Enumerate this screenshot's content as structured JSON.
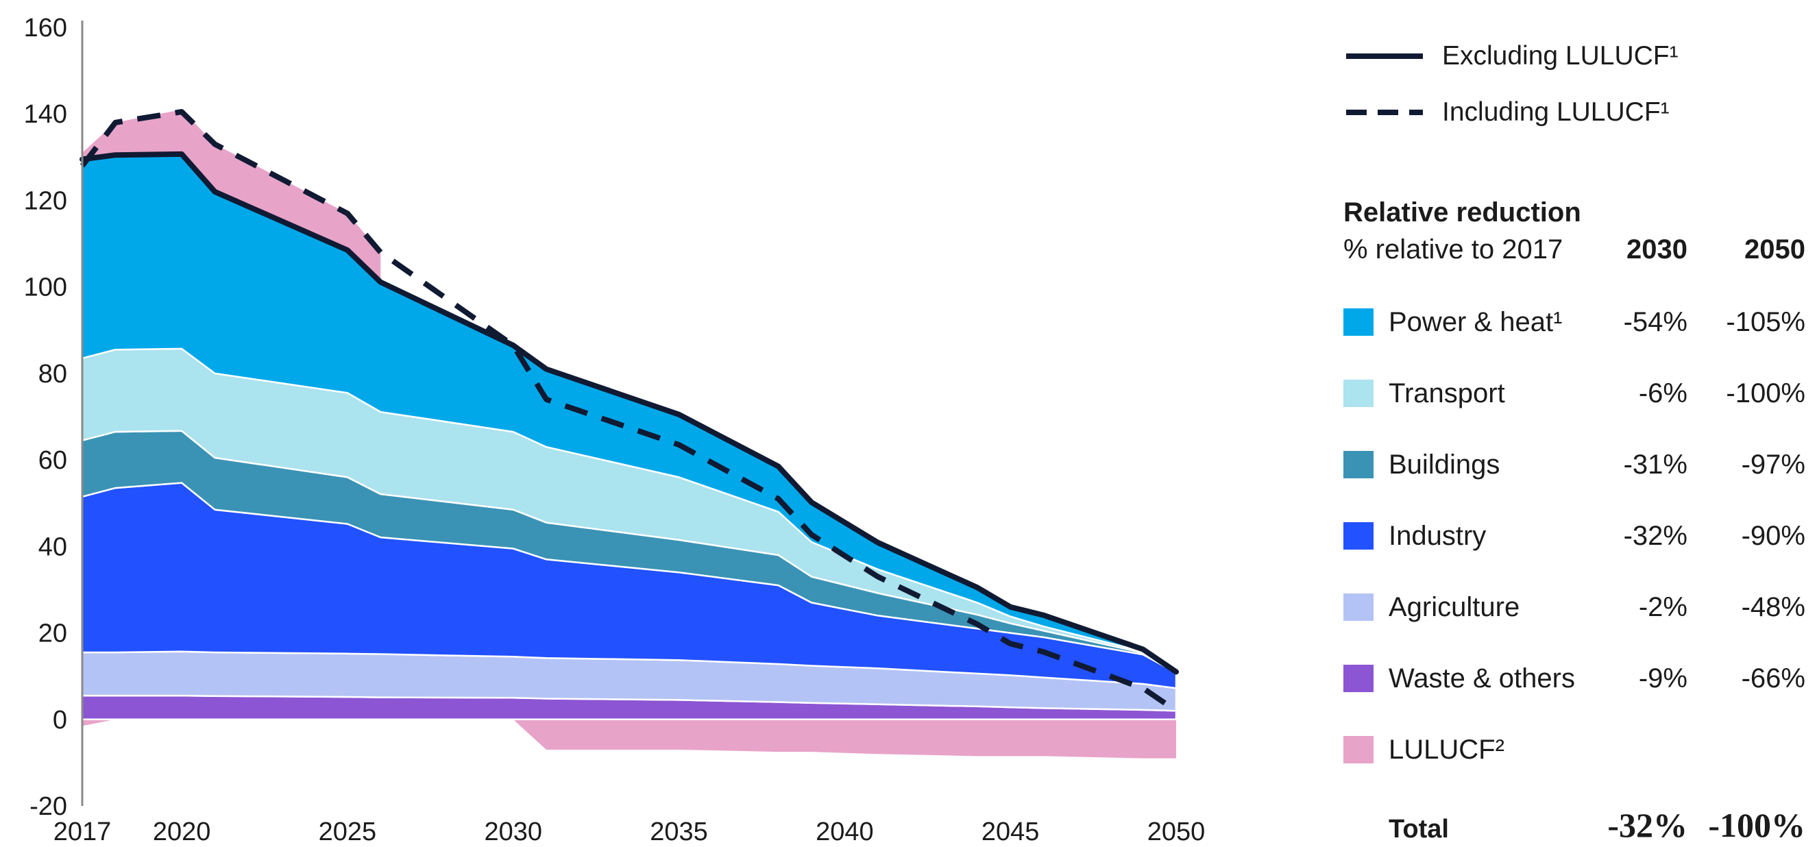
{
  "chart_data": {
    "type": "area",
    "stacked": true,
    "x": [
      2017,
      2018,
      2020,
      2021,
      2025,
      2026,
      2030,
      2031,
      2035,
      2038,
      2039,
      2041,
      2044,
      2045,
      2046,
      2049,
      2050
    ],
    "xticks": [
      2017,
      2020,
      2025,
      2030,
      2035,
      2040,
      2045,
      2050
    ],
    "yticks": [
      -20,
      0,
      20,
      40,
      60,
      80,
      100,
      120,
      140,
      160
    ],
    "ylim": [
      -20,
      160
    ],
    "xlim": [
      2017,
      2050
    ],
    "grid": false,
    "series": [
      {
        "name": "Waste & others",
        "color": "#8c55d3",
        "values": [
          5.5,
          5.5,
          5.5,
          5.4,
          5.2,
          5.1,
          5.0,
          4.8,
          4.5,
          4.0,
          3.8,
          3.5,
          3.0,
          2.8,
          2.6,
          2.2,
          2.0
        ]
      },
      {
        "name": "Agriculture",
        "color": "#b4c3f5",
        "values": [
          10,
          10,
          10.2,
          10.1,
          10,
          10,
          9.5,
          9.4,
          9.2,
          8.8,
          8.6,
          8.3,
          7.6,
          7.4,
          7.1,
          6.0,
          5.2
        ]
      },
      {
        "name": "Industry",
        "color": "#2251ff",
        "values": [
          36,
          38,
          39,
          33,
          30,
          27,
          25,
          22.8,
          20.3,
          18.2,
          14.6,
          12.2,
          10.4,
          9.8,
          9.3,
          6.8,
          3.6
        ]
      },
      {
        "name": "Buildings",
        "color": "#3a93b5",
        "values": [
          13,
          13,
          12,
          12,
          10.8,
          10,
          9,
          8.5,
          7.5,
          7,
          6,
          5.2,
          3.2,
          2.2,
          1.5,
          0.4,
          0
        ]
      },
      {
        "name": "Transport",
        "color": "#abe3ee",
        "values": [
          19,
          19,
          19,
          19.5,
          19.5,
          19,
          18,
          17.5,
          14.5,
          10,
          8,
          5.5,
          2.8,
          1.6,
          1.0,
          0.3,
          0
        ]
      },
      {
        "name": "Power & heat¹",
        "color": "#00a8ea",
        "values": [
          46,
          45,
          45,
          42,
          33,
          30,
          20,
          18,
          14.5,
          10.5,
          9.2,
          6.2,
          3.5,
          2.2,
          2.6,
          0.5,
          0.2
        ]
      }
    ],
    "lulucf": {
      "name": "LULUCF²",
      "color": "#e8a3c9",
      "x": [
        2017,
        2018,
        2020,
        2021,
        2025,
        2026,
        2030,
        2031,
        2035,
        2038,
        2039,
        2041,
        2044,
        2045,
        2046,
        2049,
        2050
      ],
      "values": [
        -1.5,
        0,
        0,
        0,
        0,
        0,
        0,
        -7,
        -7,
        -7.5,
        -7.5,
        -8,
        -8.5,
        -8.5,
        -8.5,
        -9,
        -9
      ],
      "positive_band": {
        "x": [
          2017,
          2018,
          2020,
          2021,
          2025,
          2026
        ],
        "lower": [
          129.5,
          130,
          130.5,
          122,
          108,
          102
        ],
        "upper": [
          131,
          138,
          141,
          133,
          117,
          108
        ]
      }
    },
    "lines": [
      {
        "name": "Excluding LULUCF¹",
        "style": "solid",
        "color": "#101a33",
        "x": [
          2017,
          2018,
          2020,
          2021,
          2025,
          2026,
          2030,
          2031,
          2035,
          2038,
          2039,
          2041,
          2044,
          2045,
          2046,
          2049,
          2050
        ],
        "values": [
          129.5,
          130.5,
          130.7,
          122,
          108.5,
          101.1,
          86.5,
          81,
          70.5,
          58.5,
          50.2,
          40.9,
          30.5,
          26,
          24.1,
          16.2,
          11
        ]
      },
      {
        "name": "Including LULUCF¹",
        "style": "dashed",
        "color": "#101a33",
        "x": [
          2017,
          2018,
          2020,
          2021,
          2025,
          2026,
          2030,
          2031,
          2035,
          2038,
          2039,
          2041,
          2044,
          2045,
          2046,
          2049,
          2050
        ],
        "values": [
          128,
          138,
          140.5,
          133,
          117,
          108,
          86.5,
          74,
          63.5,
          51,
          42.7,
          33,
          22,
          17.5,
          15.6,
          7.2,
          2
        ]
      }
    ]
  },
  "legend": {
    "line_excl": "Excluding LULUCF¹",
    "line_incl": "Including LULUCF¹",
    "heading": "Relative reduction",
    "subheading": "% relative to 2017",
    "col_2030": "2030",
    "col_2050": "2050",
    "rows": [
      {
        "label": "Power & heat¹",
        "color": "#00a8ea",
        "v2030": "-54%",
        "v2050": "-105%"
      },
      {
        "label": "Transport",
        "color": "#abe3ee",
        "v2030": "-6%",
        "v2050": "-100%"
      },
      {
        "label": "Buildings",
        "color": "#3a93b5",
        "v2030": "-31%",
        "v2050": "-97%"
      },
      {
        "label": "Industry",
        "color": "#2251ff",
        "v2030": "-32%",
        "v2050": "-90%"
      },
      {
        "label": "Agriculture",
        "color": "#b4c3f5",
        "v2030": "-2%",
        "v2050": "-48%"
      },
      {
        "label": "Waste & others",
        "color": "#8c55d3",
        "v2030": "-9%",
        "v2050": "-66%"
      },
      {
        "label": "LULUCF²",
        "color": "#e8a3c9",
        "v2030": "",
        "v2050": ""
      }
    ],
    "total": {
      "label": "Total",
      "v2030": "-32%",
      "v2050": "-100%"
    }
  }
}
